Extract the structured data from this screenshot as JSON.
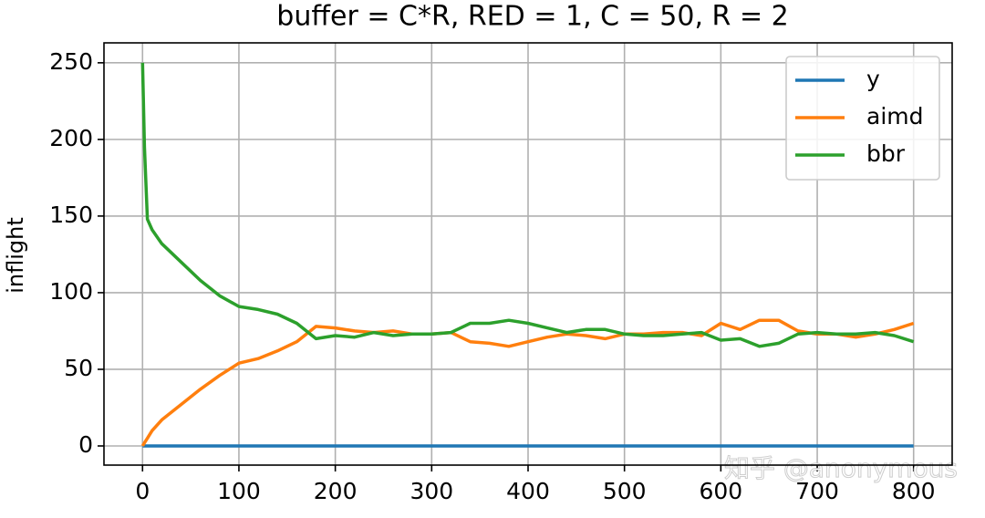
{
  "chart_data": {
    "type": "line",
    "title": "buffer = C*R, RED = 1, C = 50, R = 2",
    "y_label": "inflight",
    "x": [
      0,
      2,
      5,
      10,
      20,
      40,
      60,
      80,
      100,
      120,
      140,
      160,
      180,
      200,
      220,
      240,
      260,
      280,
      300,
      320,
      340,
      360,
      380,
      400,
      420,
      440,
      460,
      480,
      500,
      520,
      540,
      560,
      580,
      600,
      620,
      640,
      660,
      680,
      700,
      720,
      740,
      760,
      780,
      800
    ],
    "series": [
      {
        "name": "y",
        "color": "#1f77b4",
        "values": [
          0,
          0,
          0,
          0,
          0,
          0,
          0,
          0,
          0,
          0,
          0,
          0,
          0,
          0,
          0,
          0,
          0,
          0,
          0,
          0,
          0,
          0,
          0,
          0,
          0,
          0,
          0,
          0,
          0,
          0,
          0,
          0,
          0,
          0,
          0,
          0,
          0,
          0,
          0,
          0,
          0,
          0,
          0,
          0
        ]
      },
      {
        "name": "aimd",
        "color": "#ff7f0e",
        "values": [
          0,
          2,
          5,
          10,
          17,
          27,
          37,
          46,
          54,
          57,
          62,
          68,
          78,
          77,
          75,
          74,
          75,
          73,
          73,
          74,
          68,
          67,
          65,
          68,
          71,
          73,
          72,
          70,
          73,
          73,
          74,
          74,
          72,
          80,
          76,
          82,
          82,
          75,
          73,
          73,
          71,
          73,
          76,
          80
        ]
      },
      {
        "name": "bbr",
        "color": "#2ca02c",
        "values": [
          250,
          195,
          148,
          141,
          132,
          120,
          108,
          98,
          91,
          89,
          86,
          80,
          70,
          72,
          71,
          74,
          72,
          73,
          73,
          74,
          80,
          80,
          82,
          80,
          77,
          74,
          76,
          76,
          73,
          72,
          72,
          73,
          74,
          69,
          70,
          65,
          67,
          73,
          74,
          73,
          73,
          74,
          72,
          68
        ]
      }
    ],
    "xlim": [
      -40,
      840
    ],
    "xticks": [
      0,
      100,
      200,
      300,
      400,
      500,
      600,
      700,
      800
    ],
    "ylim": [
      -12.5,
      263
    ],
    "yticks": [
      0,
      50,
      100,
      150,
      200,
      250
    ],
    "grid": true,
    "legend": "upper right",
    "watermark": "知乎 @anonymous"
  }
}
